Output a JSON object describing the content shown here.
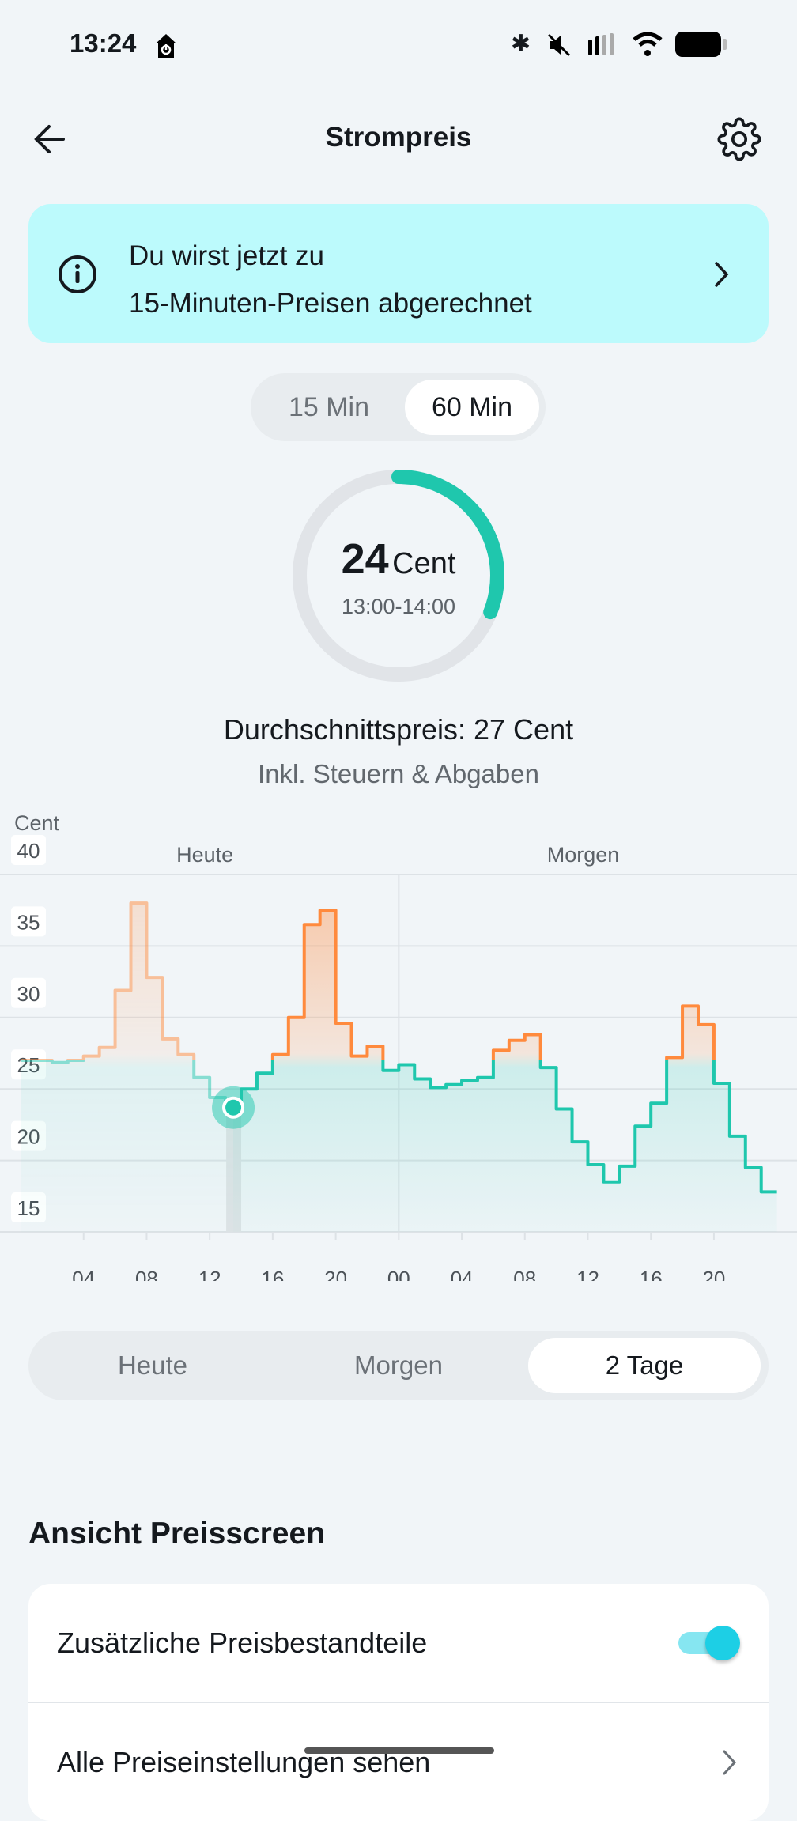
{
  "status_bar": {
    "time": "13:24"
  },
  "header": {
    "title": "Strompreis"
  },
  "banner": {
    "line1": "Du wirst jetzt zu",
    "line2": "15-Minuten-Preisen abgerechnet"
  },
  "resolution": {
    "options": [
      "15 Min",
      "60 Min"
    ],
    "selected": "60 Min"
  },
  "current": {
    "price": "24",
    "unit": "Cent",
    "range": "13:00-14:00",
    "gauge_fraction": 0.31
  },
  "average": {
    "text": "Durchschnittspreis: 27 Cent",
    "note": "Inkl. Steuern & Abgaben"
  },
  "colors": {
    "teal": "#1fc7ad",
    "orange": "#ff8a3d",
    "banner": "#bcfafc",
    "toggle": "#1dcfe5"
  },
  "chart_data": {
    "type": "line",
    "step": true,
    "ylabel": "Cent",
    "ylim": [
      15,
      40
    ],
    "yticks": [
      "15",
      "20",
      "25",
      "30",
      "35",
      "40"
    ],
    "day_labels": [
      "Heute",
      "Morgen"
    ],
    "xticks": [
      "04",
      "08",
      "12",
      "16",
      "20",
      "00",
      "04",
      "08",
      "12",
      "16",
      "20"
    ],
    "xtick_hours": [
      4,
      8,
      12,
      16,
      20,
      24,
      28,
      32,
      36,
      40,
      44
    ],
    "average": 27,
    "current_hour": 13,
    "series": [
      {
        "name": "Preis",
        "values": [
          27.0,
          27.0,
          26.85,
          27.0,
          27.3,
          27.9,
          31.9,
          38.0,
          32.8,
          28.5,
          27.4,
          25.8,
          24.4,
          23.7,
          25.0,
          26.1,
          27.4,
          30.0,
          36.5,
          37.5,
          29.6,
          27.3,
          28.0,
          26.3,
          26.7,
          25.7,
          25.1,
          25.3,
          25.6,
          25.8,
          27.7,
          28.4,
          28.8,
          26.5,
          23.6,
          21.3,
          19.7,
          18.5,
          19.6,
          22.4,
          24.0,
          27.2,
          30.8,
          29.5,
          25.4,
          21.7,
          19.5,
          17.8
        ]
      }
    ]
  },
  "range_tabs": {
    "options": [
      "Heute",
      "Morgen",
      "2 Tage"
    ],
    "selected": "2 Tage"
  },
  "settings": {
    "title": "Ansicht Preisscreen",
    "rows": [
      "Zusätzliche Preisbestandteile",
      "Alle Preiseinstellungen sehen"
    ],
    "toggle_on": true
  }
}
